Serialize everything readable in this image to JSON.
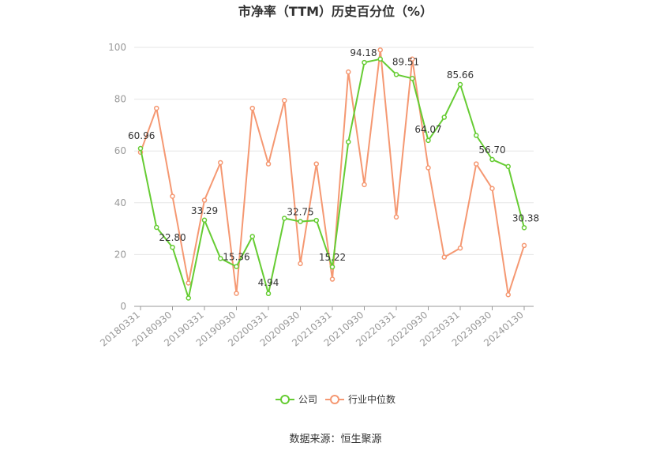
{
  "chart_data": {
    "type": "line",
    "title": "市净率（TTM）历史百分位（%）",
    "source": "数据来源：恒生聚源",
    "ylim": [
      0,
      100
    ],
    "yticks": [
      0,
      20,
      40,
      60,
      80,
      100
    ],
    "x": [
      "20180331",
      "20180630",
      "20180930",
      "20181231",
      "20190331",
      "20190630",
      "20190930",
      "20191231",
      "20200331",
      "20200630",
      "20200930",
      "20201231",
      "20210331",
      "20210630",
      "20210930",
      "20211231",
      "20220331",
      "20220630",
      "20220930",
      "20221231",
      "20230331",
      "20230630",
      "20230930",
      "20231231",
      "20240130"
    ],
    "xtick_labels": [
      "20180331",
      "20180930",
      "20190331",
      "20190930",
      "20200331",
      "20200930",
      "20210331",
      "20210930",
      "20220331",
      "20220930",
      "20230331",
      "20230930",
      "20240130"
    ],
    "legend_position": "bottom",
    "series": [
      {
        "name": "公司",
        "color": "#66cc33",
        "values": [
          60.96,
          30.5,
          22.8,
          3.2,
          33.29,
          18.5,
          15.36,
          27.0,
          4.94,
          34.0,
          32.75,
          33.2,
          15.22,
          63.5,
          94.18,
          95.5,
          89.51,
          88.0,
          64.07,
          73.0,
          85.66,
          66.0,
          56.7,
          54.0,
          30.38
        ]
      },
      {
        "name": "行业中位数",
        "color": "#f59872",
        "values": [
          59.5,
          76.5,
          42.5,
          9.0,
          41.0,
          55.5,
          5.0,
          76.5,
          55.0,
          79.5,
          16.5,
          55.0,
          10.5,
          90.5,
          47.0,
          99.0,
          34.5,
          95.5,
          53.5,
          19.0,
          22.5,
          55.0,
          45.5,
          4.5,
          23.5
        ]
      }
    ],
    "data_labels": [
      {
        "index": 0,
        "text": "60.96"
      },
      {
        "index": 2,
        "text": "22.80"
      },
      {
        "index": 4,
        "text": "33.29"
      },
      {
        "index": 6,
        "text": "15.36"
      },
      {
        "index": 8,
        "text": "4.94"
      },
      {
        "index": 10,
        "text": "32.75"
      },
      {
        "index": 12,
        "text": "15.22"
      },
      {
        "index": 14,
        "text": "94.18"
      },
      {
        "index": 16,
        "text": "89.51"
      },
      {
        "index": 18,
        "text": "64.07"
      },
      {
        "index": 20,
        "text": "85.66"
      },
      {
        "index": 22,
        "text": "56.70"
      },
      {
        "index": 24,
        "text": "30.38"
      }
    ]
  }
}
